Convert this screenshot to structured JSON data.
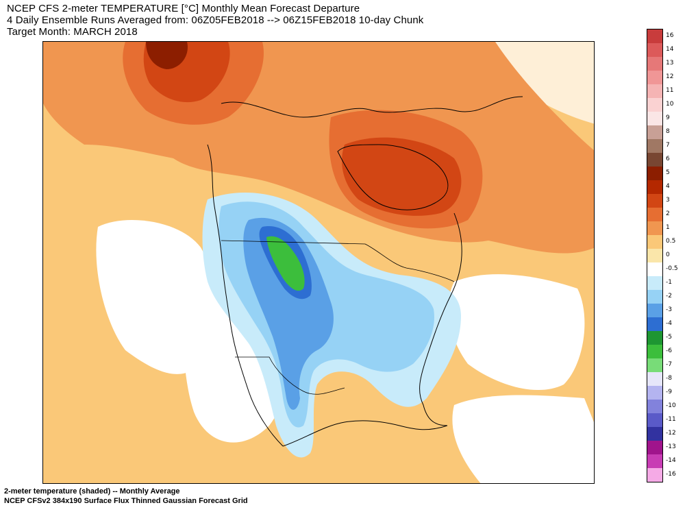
{
  "title": {
    "line1": "NCEP CFS 2-meter TEMPERATURE [°C] Monthly Mean Forecast Departure",
    "line2": "4 Daily Ensemble Runs Averaged from: 06Z05FEB2018 --> 06Z15FEB2018 10-day Chunk",
    "line3": "Target Month: MARCH 2018"
  },
  "footer": {
    "line1": "2-meter temperature (shaded) -- Monthly Average",
    "line2": "NCEP CFSv2 384x190 Surface Flux Thinned Gaussian Forecast Grid"
  },
  "colorbar": {
    "labels": [
      "16",
      "14",
      "13",
      "12",
      "11",
      "10",
      "9",
      "8",
      "7",
      "6",
      "5",
      "4",
      "3",
      "2",
      "1",
      "0.5",
      "0",
      "-0.5",
      "-1",
      "-2",
      "-3",
      "-4",
      "-5",
      "-6",
      "-7",
      "-8",
      "-9",
      "-10",
      "-11",
      "-12",
      "-13",
      "-14",
      "-16"
    ],
    "colors": [
      "#c83c3c",
      "#dc5a5a",
      "#e67878",
      "#f09696",
      "#f5b4b4",
      "#fad2d2",
      "#fae6e6",
      "#c8a096",
      "#a07864",
      "#784632",
      "#8c1e00",
      "#b42800",
      "#d24614",
      "#e66e32",
      "#f09650",
      "#fac878",
      "#fae6aa",
      "#ffffff",
      "#c8ebfa",
      "#96d2f5",
      "#5aa0e6",
      "#2d6ed2",
      "#1e9632",
      "#3cbe3c",
      "#78dc78",
      "#b4f0b4",
      "#e6e6fa",
      "#b4b4f0",
      "#8282dc",
      "#5a5ac8",
      "#3232a0",
      "#780050",
      "#a0148c",
      "#c83cb4",
      "#e678d2",
      "#f5aae6"
    ],
    "cells": [
      {
        "value": "16",
        "color": "#c83c3c"
      },
      {
        "value": "14",
        "color": "#dc5a5a"
      },
      {
        "value": "13",
        "color": "#e67878"
      },
      {
        "value": "12",
        "color": "#f09696"
      },
      {
        "value": "11",
        "color": "#f5b4b4"
      },
      {
        "value": "10",
        "color": "#fad2d2"
      },
      {
        "value": "9",
        "color": "#fae6e6"
      },
      {
        "value": "8",
        "color": "#c8a096"
      },
      {
        "value": "7",
        "color": "#a07864"
      },
      {
        "value": "6",
        "color": "#784632"
      },
      {
        "value": "5",
        "color": "#8c1e00"
      },
      {
        "value": "4",
        "color": "#b42800"
      },
      {
        "value": "3",
        "color": "#d24614"
      },
      {
        "value": "2",
        "color": "#e66e32"
      },
      {
        "value": "1",
        "color": "#f09650"
      },
      {
        "value": "0.5",
        "color": "#fac878"
      },
      {
        "value": "0",
        "color": "#fae6aa"
      },
      {
        "value": "-0.5",
        "color": "#ffffff"
      },
      {
        "value": "-1",
        "color": "#c8ebfa"
      },
      {
        "value": "-2",
        "color": "#96d2f5"
      },
      {
        "value": "-3",
        "color": "#5aa0e6"
      },
      {
        "value": "-4",
        "color": "#2d6ed2"
      },
      {
        "value": "-5",
        "color": "#1e9632"
      },
      {
        "value": "-6",
        "color": "#3cbe3c"
      },
      {
        "value": "-7",
        "color": "#78dc78"
      },
      {
        "value": "-8",
        "color": "#e6e6fa"
      },
      {
        "value": "-9",
        "color": "#b4b4f0"
      },
      {
        "value": "-10",
        "color": "#8282dc"
      },
      {
        "value": "-11",
        "color": "#5a5ac8"
      },
      {
        "value": "-12",
        "color": "#3232a0"
      },
      {
        "value": "-13",
        "color": "#a0148c"
      },
      {
        "value": "-14",
        "color": "#c83cb4"
      },
      {
        "value": "-16",
        "color": "#f5aae6"
      }
    ]
  }
}
